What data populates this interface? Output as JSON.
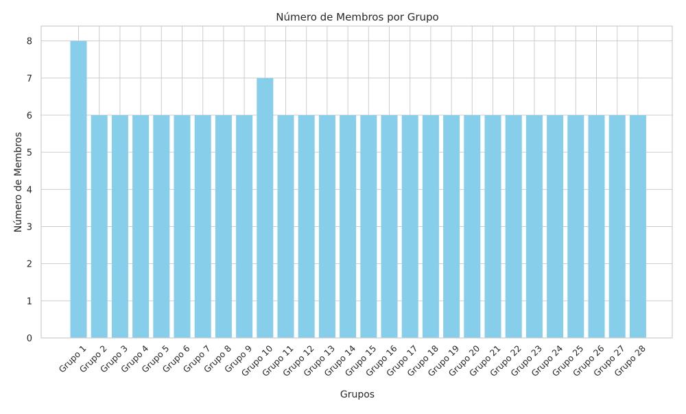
{
  "chart_data": {
    "type": "bar",
    "title": "Número de Membros por Grupo",
    "xlabel": "Grupos",
    "ylabel": "Número de Membros",
    "categories": [
      "Grupo 1",
      "Grupo 2",
      "Grupo 3",
      "Grupo 4",
      "Grupo 5",
      "Grupo 6",
      "Grupo 7",
      "Grupo 8",
      "Grupo 9",
      "Grupo 10",
      "Grupo 11",
      "Grupo 12",
      "Grupo 13",
      "Grupo 14",
      "Grupo 15",
      "Grupo 16",
      "Grupo 17",
      "Grupo 18",
      "Grupo 19",
      "Grupo 20",
      "Grupo 21",
      "Grupo 22",
      "Grupo 23",
      "Grupo 24",
      "Grupo 25",
      "Grupo 26",
      "Grupo 27",
      "Grupo 28"
    ],
    "values": [
      8,
      6,
      6,
      6,
      6,
      6,
      6,
      6,
      6,
      7,
      6,
      6,
      6,
      6,
      6,
      6,
      6,
      6,
      6,
      6,
      6,
      6,
      6,
      6,
      6,
      6,
      6,
      6
    ],
    "yticks": [
      0,
      1,
      2,
      3,
      4,
      5,
      6,
      7,
      8
    ],
    "ylim": [
      0,
      8.4
    ],
    "grid": true,
    "bar_color": "#87CEEB",
    "grid_color": "#cccccc",
    "axis_color": "#cccccc"
  }
}
